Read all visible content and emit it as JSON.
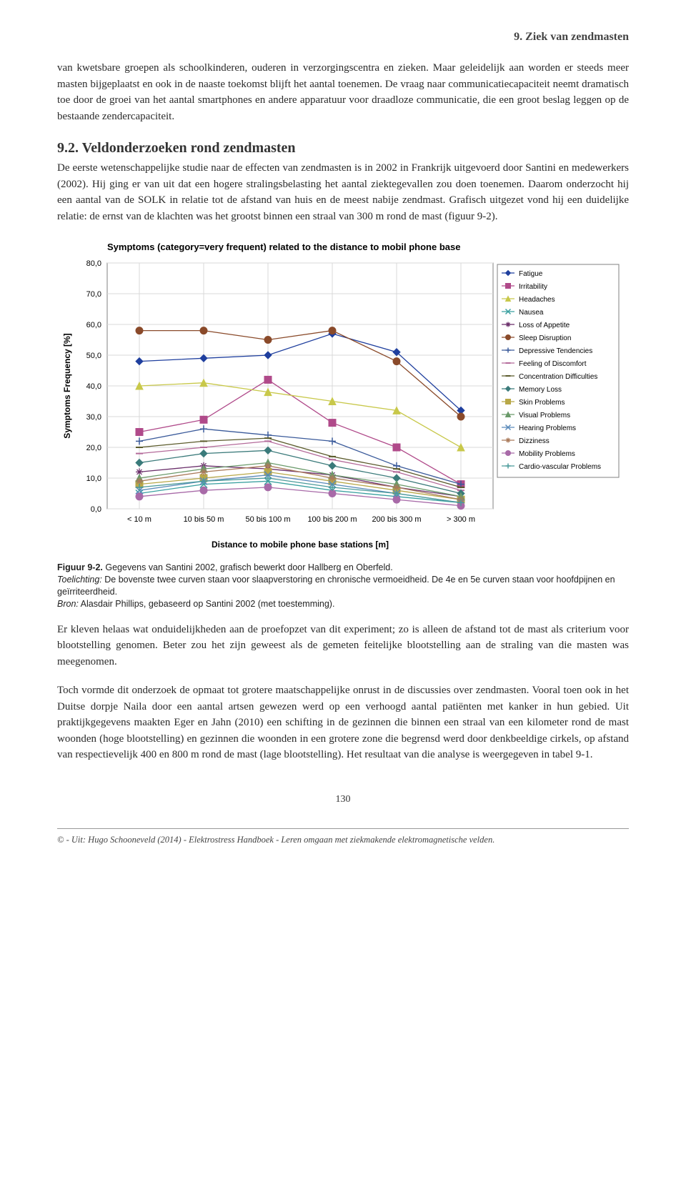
{
  "header": {
    "title": "9. Ziek van zendmasten"
  },
  "paragraphs": {
    "p1": "van kwetsbare groepen als schoolkinderen, ouderen in verzorgingscentra en zieken. Maar geleidelijk aan worden er steeds meer masten bijgeplaatst en ook in de naaste toekomst blijft het aantal toenemen. De vraag naar communicatiecapaciteit neemt dramatisch toe door de groei van het aantal smartphones en andere apparatuur voor draadloze communicatie, die een groot beslag leggen op de bestaande zendercapaciteit."
  },
  "section": {
    "title": "9.2. Veldonderzoeken rond zendmasten",
    "body": "De eerste wetenschappelijke studie naar de effecten van zendmasten is in 2002 in Frankrijk uitgevoerd door Santini en medewerkers (2002). Hij ging er van uit dat een hogere stralingsbelasting het aantal ziektegevallen zou doen toenemen. Daarom onderzocht hij een aantal van de SOLK in relatie tot de afstand van huis en de meest nabije zendmast. Grafisch uitgezet vond hij een duidelijke relatie: de ernst van de klachten was het grootst binnen een straal van 300 m rond de mast (figuur 9-2)."
  },
  "chart": {
    "type": "line",
    "title": "Symptoms (category=very frequent) related to the distance to mobil phone base",
    "title_fontsize": 13,
    "title_weight": "bold",
    "xlabel": "Distance to mobile phone base stations [m]",
    "ylabel": "Symptoms Frequency [%]",
    "label_fontsize": 12,
    "label_weight": "bold",
    "background_color": "#ffffff",
    "plot_bg": "#ffffff",
    "grid_color": "#d9d9d9",
    "axis_color": "#808080",
    "ylim": [
      0,
      80
    ],
    "ytick_step": 10,
    "yticks": [
      "0,0",
      "10,0",
      "20,0",
      "30,0",
      "40,0",
      "50,0",
      "60,0",
      "70,0",
      "80,0"
    ],
    "categories": [
      "< 10 m",
      "10 bis 50 m",
      "50 bis 100 m",
      "100 bis 200 m",
      "200 bis 300 m",
      "> 300 m"
    ],
    "marker_size": 5,
    "line_width": 1.3,
    "series": [
      {
        "name": "Fatigue",
        "color": "#1f3f9e",
        "marker": "diamond",
        "values": [
          48,
          49,
          50,
          57,
          51,
          32
        ]
      },
      {
        "name": "Irritability",
        "color": "#b04a8a",
        "marker": "square",
        "values": [
          25,
          29,
          42,
          28,
          20,
          8
        ]
      },
      {
        "name": "Headaches",
        "color": "#c8c84a",
        "marker": "triangle",
        "values": [
          40,
          41,
          38,
          35,
          32,
          20
        ]
      },
      {
        "name": "Nausea",
        "color": "#3aa0a0",
        "marker": "x",
        "values": [
          5,
          8,
          9,
          6,
          4,
          2
        ]
      },
      {
        "name": "Loss of Appetite",
        "color": "#6a2e6a",
        "marker": "star",
        "values": [
          12,
          14,
          13,
          11,
          7,
          4
        ]
      },
      {
        "name": "Sleep Disruption",
        "color": "#8a4a2a",
        "marker": "circle",
        "values": [
          58,
          58,
          55,
          58,
          48,
          30
        ]
      },
      {
        "name": "Depressive Tendencies",
        "color": "#3a5a9a",
        "marker": "plus",
        "values": [
          22,
          26,
          24,
          22,
          14,
          8
        ]
      },
      {
        "name": "Feeling of Discomfort",
        "color": "#b46a9a",
        "marker": "line",
        "values": [
          18,
          20,
          22,
          16,
          12,
          6
        ]
      },
      {
        "name": "Concentration Difficulties",
        "color": "#5a5a2a",
        "marker": "line",
        "values": [
          20,
          22,
          23,
          17,
          13,
          7
        ]
      },
      {
        "name": "Memory Loss",
        "color": "#3a7a7a",
        "marker": "diamond",
        "values": [
          15,
          18,
          19,
          14,
          10,
          5
        ]
      },
      {
        "name": "Skin Problems",
        "color": "#b8a848",
        "marker": "square",
        "values": [
          8,
          10,
          12,
          9,
          6,
          3
        ]
      },
      {
        "name": "Visual Problems",
        "color": "#6a9a6a",
        "marker": "triangle",
        "values": [
          10,
          13,
          15,
          11,
          8,
          4
        ]
      },
      {
        "name": "Hearing Problems",
        "color": "#5a8aba",
        "marker": "x",
        "values": [
          6,
          9,
          11,
          8,
          5,
          2
        ]
      },
      {
        "name": "Dizziness",
        "color": "#aa7a5a",
        "marker": "star",
        "values": [
          9,
          12,
          14,
          10,
          7,
          3
        ]
      },
      {
        "name": "Mobility Problems",
        "color": "#a86aa8",
        "marker": "circle",
        "values": [
          4,
          6,
          7,
          5,
          3,
          1
        ]
      },
      {
        "name": "Cardio-vascular Problems",
        "color": "#4a9a9a",
        "marker": "plus",
        "values": [
          7,
          9,
          10,
          7,
          5,
          2
        ]
      }
    ],
    "legend_border": "#808080",
    "legend_fontsize": 10
  },
  "caption": {
    "line1_strong": "Figuur 9-2.",
    "line1_rest": " Gegevens van Santini 2002, grafisch bewerkt door Hallberg en Oberfeld.",
    "line2_em": "Toelichting:",
    "line2_rest": " De bovenste twee curven staan voor slaapverstoring en chronische vermoeidheid. De 4e en 5e curven staan voor hoofdpijnen en geïrriteerdheid.",
    "line3_em": "Bron:",
    "line3_rest": " Alasdair Phillips, gebaseerd op Santini 2002 (met toestemming)."
  },
  "paragraphs2": {
    "p3": "Er kleven helaas wat onduidelijkheden aan de proefopzet van dit experiment; zo is alleen de afstand tot de mast als criterium voor blootstelling genomen. Beter zou het zijn geweest als de gemeten feitelijke blootstelling aan de straling van die masten was meegenomen.",
    "p4": "Toch vormde dit onderzoek de opmaat tot grotere maatschappelijke onrust in de discussies over zendmasten. Vooral toen ook in het Duitse dorpje Naila door een aantal artsen gewezen werd op een verhoogd aantal patiënten met kanker in hun gebied. Uit praktijkgegevens maakten Eger en Jahn (2010) een schifting in de gezinnen die binnen een straal van een kilometer rond de mast woonden (hoge blootstelling) en gezinnen die woonden in een grotere zone die begrensd werd door denkbeeldige cirkels, op afstand van respectievelijk 400 en 800 m rond de mast (lage blootstelling). Het resultaat van die analyse is weergegeven in tabel 9-1."
  },
  "page_number": "130",
  "footer": "© - Uit: Hugo Schooneveld (2014) - Elektrostress Handboek - Leren omgaan met ziekmakende elektromagnetische velden."
}
